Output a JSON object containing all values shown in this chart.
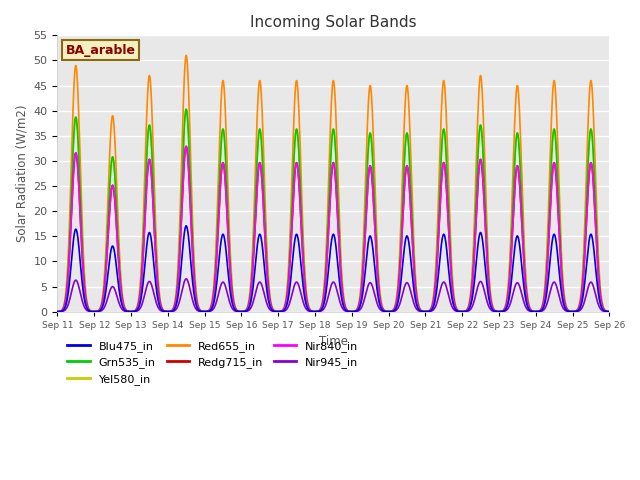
{
  "title": "Incoming Solar Bands",
  "xlabel": "Time",
  "ylabel": "Solar Radiation (W/m2)",
  "annotation": "BA_arable",
  "ylim": [
    0,
    55
  ],
  "background_color": "#e8e8e8",
  "series": [
    {
      "name": "Blu475_in",
      "color": "#0000dd",
      "lw": 1.2
    },
    {
      "name": "Grn535_in",
      "color": "#00cc00",
      "lw": 1.2
    },
    {
      "name": "Yel580_in",
      "color": "#cccc00",
      "lw": 1.2
    },
    {
      "name": "Red655_in",
      "color": "#ff8800",
      "lw": 1.2
    },
    {
      "name": "Redg715_in",
      "color": "#cc0000",
      "lw": 1.2
    },
    {
      "name": "Nir840_in",
      "color": "#ff00ff",
      "lw": 1.2
    },
    {
      "name": "Nir945_in",
      "color": "#8800cc",
      "lw": 1.2
    }
  ],
  "num_days": 15,
  "start_day": 11,
  "grid_color": "#ffffff",
  "tick_label_color": "#555555",
  "orange_peaks": [
    49,
    39,
    47,
    51,
    46,
    46,
    46,
    46,
    45,
    45,
    46,
    47,
    45,
    46,
    46
  ],
  "ratios": {
    "Blu475_in": 0.335,
    "Grn535_in": 0.79,
    "Yel580_in": 0.79,
    "Red655_in": 1.0,
    "Redg715_in": 0.645,
    "Nir840_in": 0.645,
    "Nir945_in": 0.128
  },
  "sigma": 0.12,
  "points_per_day": 200
}
